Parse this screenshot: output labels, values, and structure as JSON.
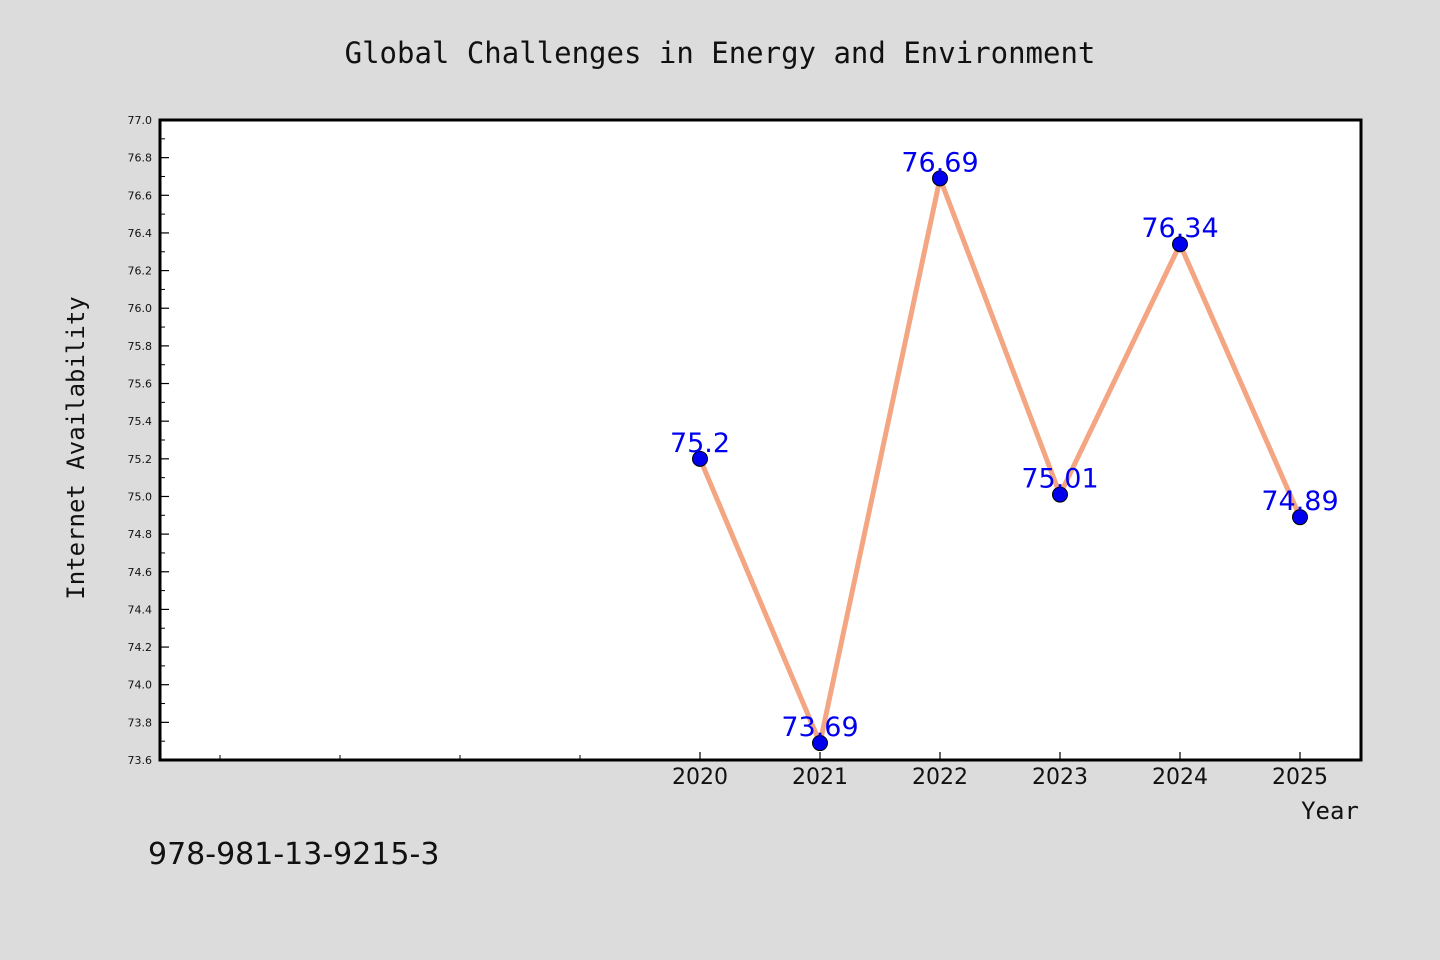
{
  "chart_data": {
    "type": "line",
    "title": "Global Challenges in Energy and Environment",
    "xlabel": "Year",
    "ylabel": "Internet Availability",
    "x": [
      "2020",
      "2021",
      "2022",
      "2023",
      "2024",
      "2025"
    ],
    "series": [
      {
        "values": [
          75.2,
          73.69,
          76.69,
          75.01,
          76.34,
          74.89
        ],
        "labels": [
          "75.2",
          "73.69",
          "76.69",
          "75.01",
          "76.34",
          "74.89"
        ],
        "line_color": "#f4a582",
        "marker_color": "#0000ee"
      }
    ],
    "ylim": [
      73.6,
      77.0
    ],
    "yticks": [
      "73.6",
      "73.8",
      "74.0",
      "74.2",
      "74.4",
      "74.6",
      "74.8",
      "75.0",
      "75.2",
      "75.4",
      "75.6",
      "75.8",
      "76.0",
      "76.2",
      "76.4",
      "76.6",
      "76.8",
      "77.0"
    ],
    "grid": false,
    "legend": "none"
  },
  "footer": {
    "isbn": "978-981-13-9215-3"
  },
  "colors": {
    "background": "#dcdcdc",
    "plot_background": "#ffffff",
    "data_label": "#0000ee"
  }
}
